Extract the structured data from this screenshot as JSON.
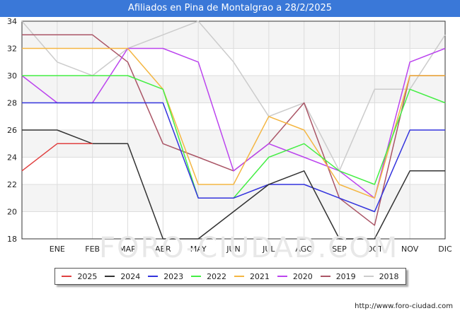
{
  "title": "Afiliados en Pina de Montalgrao a 28/2/2025",
  "source": "http://www.foro-ciudad.com",
  "watermark": "FORO-CIUDAD.COM",
  "chart_data": {
    "type": "line",
    "title": "Afiliados en Pina de Montalgrao a 28/2/2025",
    "categories": [
      "",
      "ENE",
      "FEB",
      "MAR",
      "ABR",
      "MAY",
      "JUN",
      "JUL",
      "AGO",
      "SEP",
      "OCT",
      "NOV",
      "DIC"
    ],
    "ylim": [
      18,
      34
    ],
    "yticks": [
      18,
      20,
      22,
      24,
      26,
      28,
      30,
      32,
      34
    ],
    "grid": true,
    "legend": "bottom",
    "series": [
      {
        "name": "2018",
        "color": "#cccccc",
        "values": [
          34,
          31,
          30,
          32,
          33,
          34,
          31,
          27,
          28,
          23,
          29,
          29,
          33
        ]
      },
      {
        "name": "2019",
        "color": "#aa5566",
        "values": [
          33,
          33,
          33,
          31,
          25,
          24,
          23,
          25,
          28,
          21,
          19,
          30,
          30
        ]
      },
      {
        "name": "2020",
        "color": "#bb44ee",
        "values": [
          30,
          28,
          28,
          32,
          32,
          31,
          23,
          25,
          24,
          23,
          21,
          31,
          32
        ]
      },
      {
        "name": "2021",
        "color": "#f4b642",
        "values": [
          32,
          32,
          32,
          32,
          29,
          22,
          22,
          27,
          26,
          22,
          21,
          30,
          30
        ]
      },
      {
        "name": "2022",
        "color": "#44ee44",
        "values": [
          30,
          30,
          30,
          30,
          29,
          21,
          21,
          24,
          25,
          23,
          22,
          29,
          28
        ]
      },
      {
        "name": "2023",
        "color": "#3333dd",
        "values": [
          28,
          28,
          28,
          28,
          28,
          21,
          21,
          22,
          22,
          21,
          20,
          26,
          26
        ]
      },
      {
        "name": "2024",
        "color": "#333333",
        "values": [
          26,
          26,
          25,
          25,
          18,
          18,
          20,
          22,
          23,
          18,
          18,
          23,
          23
        ]
      },
      {
        "name": "2025",
        "color": "#e04040",
        "values": [
          23,
          25,
          25,
          null,
          null,
          null,
          null,
          null,
          null,
          null,
          null,
          null,
          null
        ]
      }
    ],
    "legend_order": [
      "2025",
      "2024",
      "2023",
      "2022",
      "2021",
      "2020",
      "2019",
      "2018"
    ]
  }
}
